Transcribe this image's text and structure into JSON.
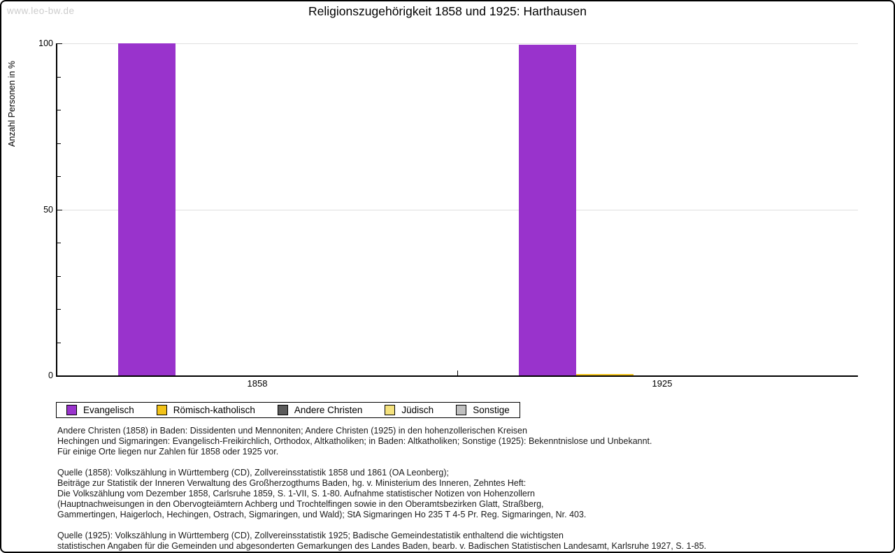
{
  "watermark": "www.leo-bw.de",
  "chart_data": {
    "type": "bar",
    "title": "Religionszugehörigkeit 1858 und 1925: Harthausen",
    "xlabel": "",
    "ylabel": "Anzahl Personen in %",
    "categories": [
      "1858",
      "1925"
    ],
    "series": [
      {
        "name": "Evangelisch",
        "color": "#9933CC",
        "values": [
          100,
          99.6
        ]
      },
      {
        "name": "Römisch-katholisch",
        "color": "#F2C218",
        "values": [
          0,
          0.4
        ]
      },
      {
        "name": "Andere Christen",
        "color": "#5A5A5A",
        "values": [
          0,
          0
        ]
      },
      {
        "name": "Jüdisch",
        "color": "#F5E27D",
        "values": [
          0,
          0
        ]
      },
      {
        "name": "Sonstige",
        "color": "#C0C0C0",
        "values": [
          0,
          0
        ]
      }
    ],
    "ylim": [
      0,
      100
    ],
    "yticks_major": [
      0,
      50,
      100
    ],
    "ytick_minor_step": 10,
    "gridlines": [
      50,
      100
    ],
    "grid": "horizontal",
    "legend_position": "below"
  },
  "notes": [
    {
      "lines": [
        "Andere Christen (1858) in Baden: Dissidenten und Mennoniten; Andere Christen (1925) in den hohenzollerischen Kreisen",
        "Hechingen und Sigmaringen: Evangelisch-Freikirchlich, Orthodox, Altkatholiken; in Baden: Altkatholiken; Sonstige (1925): Bekenntnislose und Unbekannt.",
        "Für einige Orte liegen nur Zahlen für 1858 oder 1925 vor."
      ]
    },
    {
      "lines": [
        "Quelle (1858): Volkszählung in Württemberg (CD), Zollvereinsstatistik 1858 und 1861 (OA Leonberg);",
        "Beiträge zur Statistik der Inneren Verwaltung des Großherzogthums Baden, hg. v. Ministerium des Inneren, Zehntes Heft:",
        "Die Volkszählung vom Dezember 1858, Carlsruhe 1859, S. 1-VII, S. 1-80. Aufnahme statistischer Notizen von Hohenzollern",
        "(Hauptnachweisungen in den Obervogteiämtern Achberg und Trochtelfingen sowie in den Oberamtsbezirken Glatt, Straßberg,",
        "Gammertingen, Haigerloch, Hechingen, Ostrach, Sigmaringen, und Wald); StA Sigmaringen Ho 235 T 4-5 Pr. Reg. Sigmaringen, Nr. 403."
      ]
    },
    {
      "lines": [
        "Quelle (1925): Volkszählung in Württemberg (CD), Zollvereinsstatistik 1925; Badische Gemeindestatistik enthaltend die wichtigsten",
        "statistischen Angaben für die Gemeinden und abgesonderten Gemarkungen des Landes Baden, bearb. v. Badischen Statistischen Landesamt, Karlsruhe 1927, S. 1-85."
      ]
    }
  ]
}
